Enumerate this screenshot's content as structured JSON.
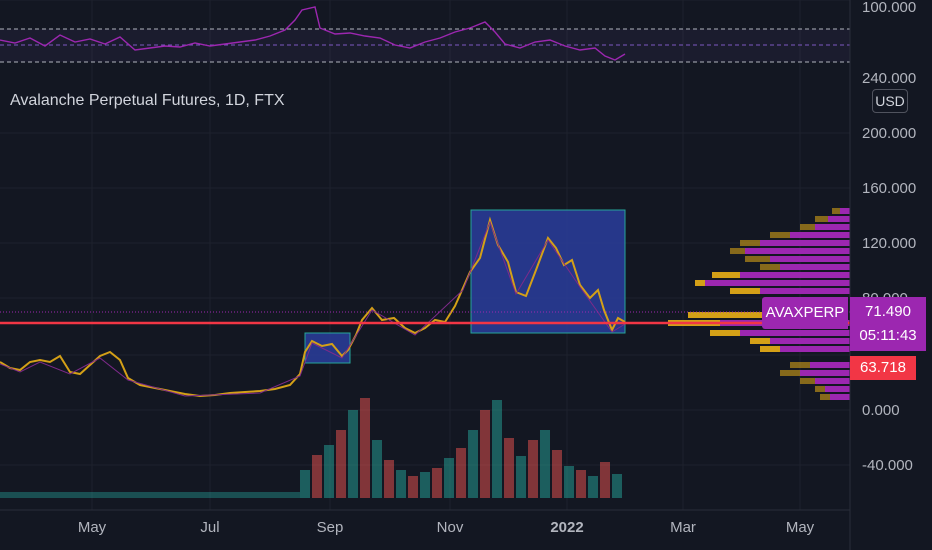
{
  "header": {
    "title": "Avalanche Perpetual Futures, 1D, FTX"
  },
  "currency_button": {
    "label": "USD"
  },
  "rsi_panel": {
    "tick_label": "100.000"
  },
  "price_axis": {
    "ticks": [
      "240.000",
      "200.000",
      "160.000",
      "120.000",
      "80.000",
      "0.000",
      "-40.000"
    ]
  },
  "time_axis": {
    "ticks": [
      "May",
      "Jul",
      "Sep",
      "Nov",
      "2022",
      "Mar",
      "May"
    ]
  },
  "labels": {
    "symbol": "AVAXPERP",
    "last_price": "71.490",
    "countdown": "05:11:43",
    "horizontal_line": "63.718"
  },
  "colors": {
    "background": "#131722",
    "candle_line": "#d4a017",
    "purple": "#9c27b0",
    "red_line": "#f23645",
    "box_fill": "#2a3d9c",
    "box_border": "#26a69a"
  }
}
